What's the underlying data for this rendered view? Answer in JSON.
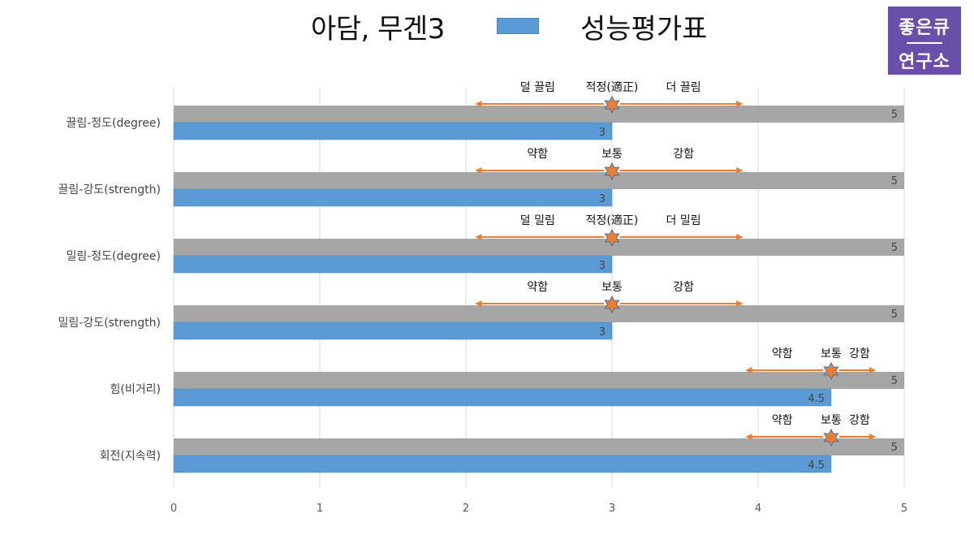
{
  "header": {
    "title": "아담, 무겐3",
    "logo_line1": "좋은큐",
    "logo_line2": "연구소"
  },
  "colors": {
    "series_eval": "#5b9bd5",
    "series_max": "#a6a6a6",
    "arrow": "#ed7d31",
    "grid": "#d9d9d9",
    "logo_bg": "#6a4faa"
  },
  "chart_data": {
    "type": "bar",
    "orientation": "horizontal",
    "categories": [
      "끌림-정도(degree)",
      "끌림-강도(strength)",
      "밀림-정도(degree)",
      "밀림-강도(strength)",
      "힘(비거리)",
      "회전(지속력)"
    ],
    "series": [
      {
        "name": "",
        "values": [
          5,
          5,
          5,
          5,
          5,
          5
        ]
      },
      {
        "name": "성능평가표",
        "values": [
          3,
          3,
          3,
          3,
          4.5,
          4.5
        ]
      }
    ],
    "xlim": [
      0,
      5
    ],
    "xticks": [
      "0",
      "1",
      "2",
      "3",
      "4",
      "5"
    ],
    "grid": true,
    "legend": "top-center",
    "annotations": [
      {
        "left": "덜 끌림",
        "center": "적정(適正)",
        "right": "더 끌림",
        "marker": 3,
        "range": [
          2.07,
          3.89
        ]
      },
      {
        "left": "약함",
        "center": "보통",
        "right": "강함",
        "marker": 3,
        "range": [
          2.07,
          3.89
        ]
      },
      {
        "left": "덜 밀림",
        "center": "적정(適正)",
        "right": "더 밀림",
        "marker": 3,
        "range": [
          2.07,
          3.89
        ]
      },
      {
        "left": "약함",
        "center": "보통",
        "right": "강함",
        "marker": 3,
        "range": [
          2.07,
          3.89
        ]
      },
      {
        "left": "약함",
        "center": "보통",
        "right": "강함",
        "marker": 4.5,
        "range": [
          3.92,
          4.8
        ]
      },
      {
        "left": "약함",
        "center": "보통",
        "right": "강함",
        "marker": 4.5,
        "range": [
          3.92,
          4.8
        ]
      }
    ]
  }
}
